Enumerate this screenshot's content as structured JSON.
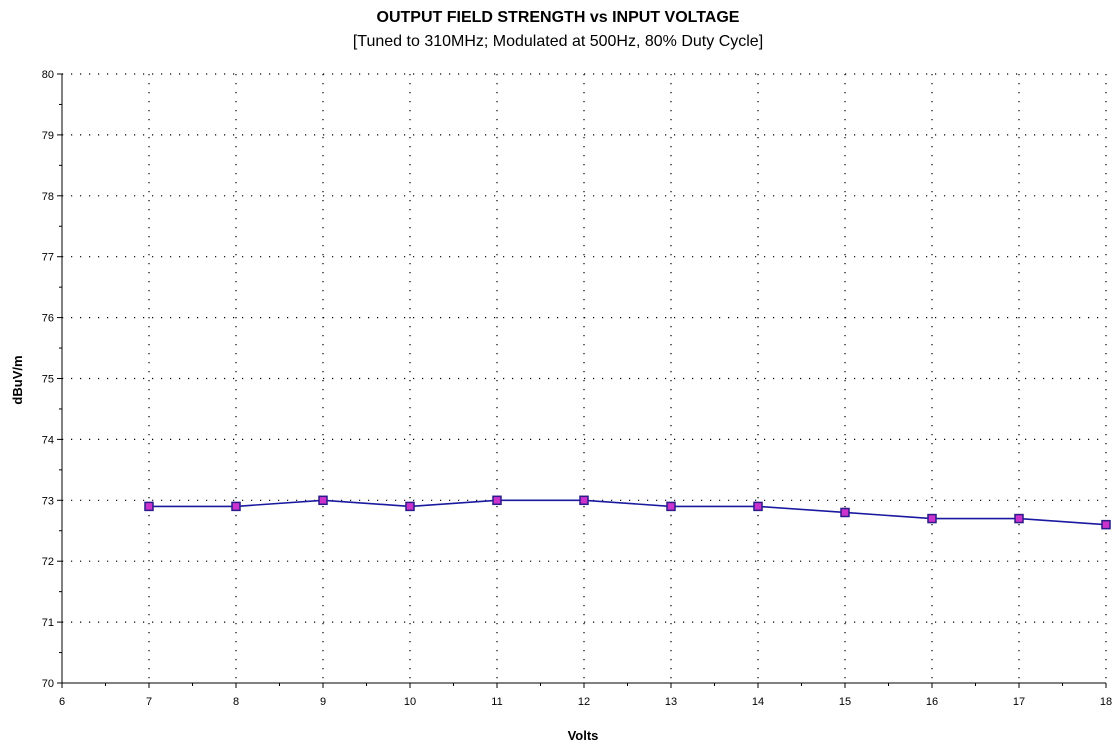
{
  "chart_data": {
    "type": "line",
    "title": "OUTPUT FIELD STRENGTH vs INPUT VOLTAGE",
    "subtitle": "[Tuned to 310MHz;  Modulated at 500Hz, 80% Duty Cycle]",
    "xlabel": "Volts",
    "ylabel": "dBuV/m",
    "xlim": [
      6,
      18
    ],
    "ylim": [
      70,
      80
    ],
    "x_ticks": [
      6,
      7,
      8,
      9,
      10,
      11,
      12,
      13,
      14,
      15,
      16,
      17,
      18
    ],
    "y_ticks": [
      70,
      71,
      72,
      73,
      74,
      75,
      76,
      77,
      78,
      79,
      80
    ],
    "grid": true,
    "legend": "none",
    "line_color": "#1a1aa0",
    "marker_color": "#cc33cc",
    "marker_edge_color": "#2a1a8a",
    "x": [
      7,
      8,
      9,
      10,
      11,
      12,
      13,
      14,
      15,
      16,
      17,
      18
    ],
    "series": [
      {
        "values": [
          72.9,
          72.9,
          73.0,
          72.9,
          73.0,
          73.0,
          72.9,
          72.9,
          72.8,
          72.7,
          72.7,
          72.6
        ]
      }
    ]
  }
}
